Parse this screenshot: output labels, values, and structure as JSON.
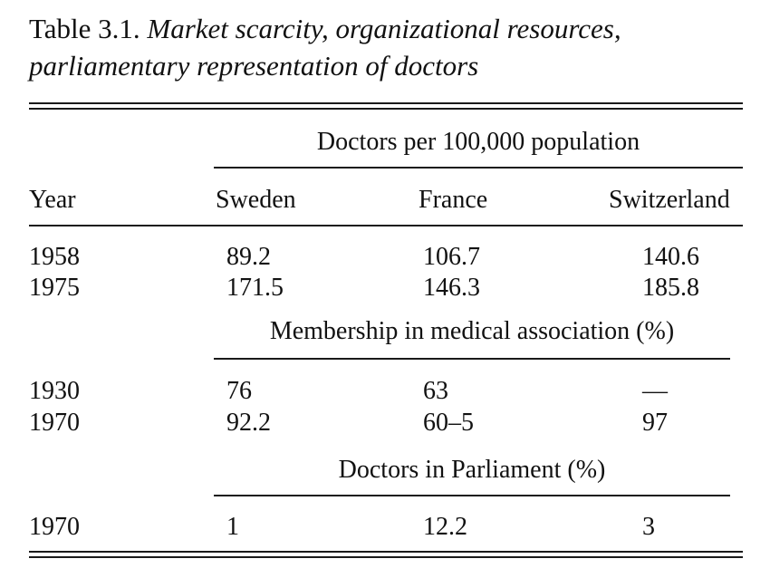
{
  "caption": {
    "label": "Table 3.1.",
    "title_line1": "Market scarcity, organizational resources,",
    "title_line2": "parliamentary representation of doctors"
  },
  "table": {
    "columns": [
      "Year",
      "Sweden",
      "France",
      "Switzerland"
    ],
    "groups": [
      {
        "heading": "Doctors per 100,000 population",
        "rows": [
          {
            "year": "1958",
            "sweden": "89.2",
            "france": "106.7",
            "switzerland": "140.6"
          },
          {
            "year": "1975",
            "sweden": "171.5",
            "france": "146.3",
            "switzerland": "185.8"
          }
        ]
      },
      {
        "heading": "Membership in medical association (%)",
        "rows": [
          {
            "year": "1930",
            "sweden": "76",
            "france": "63",
            "switzerland": "—"
          },
          {
            "year": "1970",
            "sweden": "92.2",
            "france": "60–5",
            "switzerland": "97"
          }
        ]
      },
      {
        "heading": "Doctors in Parliament (%)",
        "rows": [
          {
            "year": "1970",
            "sweden": "1",
            "france": "12.2",
            "switzerland": "3"
          }
        ]
      }
    ]
  }
}
